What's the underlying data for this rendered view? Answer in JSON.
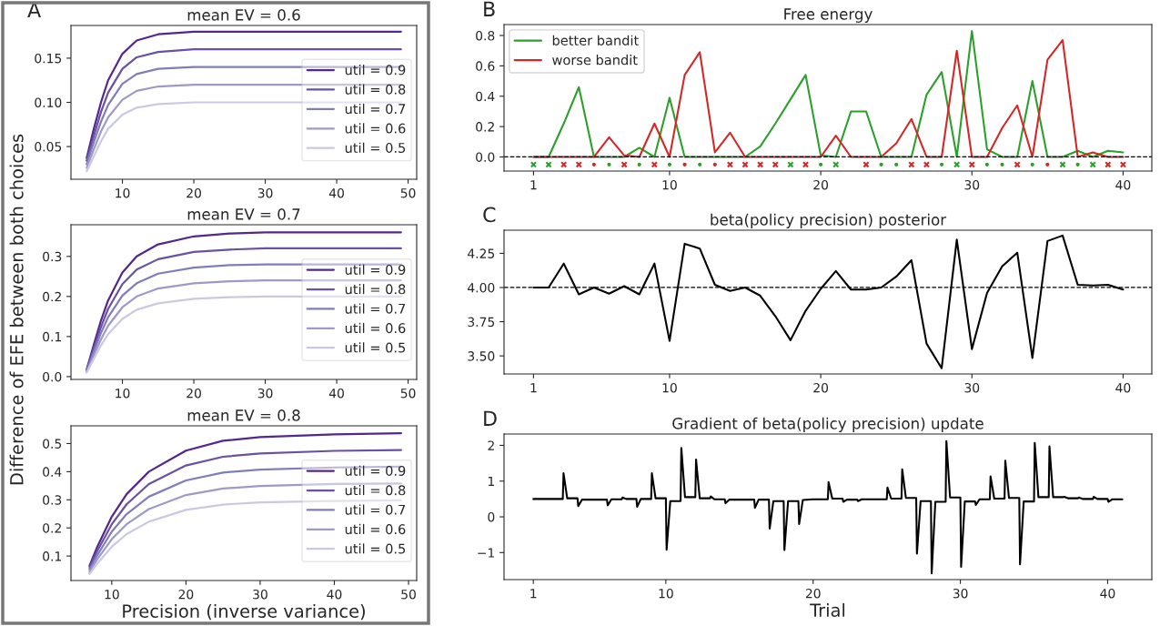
{
  "chart_data": [
    {
      "type": "line",
      "title": "mean EV = 0.6",
      "annotations": [
        "A"
      ],
      "x": [
        5,
        6,
        7,
        8,
        10,
        12,
        15,
        20,
        25,
        30,
        49
      ],
      "xlim": [
        2.8,
        51.2
      ],
      "ylim": [
        0.013,
        0.187
      ],
      "xticks": [
        10,
        20,
        30,
        40,
        50
      ],
      "yticks": [
        {
          "value": 0.05,
          "label": "0.05"
        },
        {
          "value": 0.1,
          "label": "0.10"
        },
        {
          "value": 0.15,
          "label": "0.15"
        }
      ],
      "legend": "right",
      "grid": false,
      "series": [
        {
          "name": "util = 0.9",
          "color": "#54278f",
          "values": [
            0.037,
            0.07,
            0.1,
            0.125,
            0.155,
            0.17,
            0.177,
            0.18,
            0.18,
            0.18,
            0.18
          ]
        },
        {
          "name": "util = 0.8",
          "color": "#6a51a3",
          "values": [
            0.034,
            0.062,
            0.089,
            0.111,
            0.138,
            0.151,
            0.157,
            0.16,
            0.16,
            0.16,
            0.16
          ]
        },
        {
          "name": "util = 0.7",
          "color": "#807dba",
          "values": [
            0.03,
            0.055,
            0.078,
            0.097,
            0.121,
            0.132,
            0.138,
            0.14,
            0.14,
            0.14,
            0.14
          ]
        },
        {
          "name": "util = 0.6",
          "color": "#9e9ac8",
          "values": [
            0.026,
            0.047,
            0.067,
            0.083,
            0.103,
            0.113,
            0.118,
            0.12,
            0.12,
            0.12,
            0.12
          ]
        },
        {
          "name": "util = 0.5",
          "color": "#cbc9e2",
          "values": [
            0.022,
            0.039,
            0.056,
            0.07,
            0.086,
            0.094,
            0.098,
            0.1,
            0.1,
            0.1,
            0.1
          ]
        }
      ]
    },
    {
      "type": "line",
      "title": "mean EV = 0.7",
      "ylabel": "Difference of EFE between both choices",
      "x": [
        5,
        6,
        7,
        8,
        10,
        12,
        15,
        20,
        25,
        30,
        49
      ],
      "xlim": [
        2.8,
        51.2
      ],
      "ylim": [
        -0.007,
        0.379
      ],
      "xticks": [
        10,
        20,
        30,
        40,
        50
      ],
      "yticks": [
        {
          "value": 0,
          "label": "0.0"
        },
        0.1,
        0.2,
        0.3
      ],
      "legend": "right",
      "grid": false,
      "series": [
        {
          "name": "util = 0.9",
          "color": "#54278f",
          "values": [
            0.018,
            0.08,
            0.14,
            0.19,
            0.26,
            0.3,
            0.33,
            0.35,
            0.357,
            0.36,
            0.36
          ]
        },
        {
          "name": "util = 0.8",
          "color": "#6a51a3",
          "values": [
            0.016,
            0.071,
            0.124,
            0.169,
            0.231,
            0.267,
            0.293,
            0.311,
            0.317,
            0.32,
            0.32
          ]
        },
        {
          "name": "util = 0.7",
          "color": "#807dba",
          "values": [
            0.014,
            0.062,
            0.109,
            0.148,
            0.202,
            0.233,
            0.257,
            0.272,
            0.278,
            0.28,
            0.28
          ]
        },
        {
          "name": "util = 0.6",
          "color": "#9e9ac8",
          "values": [
            0.012,
            0.053,
            0.093,
            0.127,
            0.173,
            0.2,
            0.22,
            0.233,
            0.238,
            0.24,
            0.24
          ]
        },
        {
          "name": "util = 0.5",
          "color": "#cbc9e2",
          "values": [
            0.01,
            0.044,
            0.078,
            0.106,
            0.144,
            0.167,
            0.183,
            0.194,
            0.198,
            0.2,
            0.2
          ]
        }
      ]
    },
    {
      "type": "line",
      "title": "mean EV = 0.8",
      "xlabel": "Precision (inverse variance)",
      "x": [
        7,
        8,
        10,
        12,
        15,
        20,
        25,
        30,
        40,
        49
      ],
      "xlim": [
        4.5,
        51.1
      ],
      "ylim": [
        0.013,
        0.563
      ],
      "xticks": [
        10,
        20,
        30,
        40,
        50
      ],
      "yticks": [
        0.1,
        0.2,
        0.3,
        0.4,
        0.5
      ],
      "legend": "right",
      "grid": false,
      "series": [
        {
          "name": "util = 0.9",
          "color": "#54278f",
          "values": [
            0.065,
            0.13,
            0.24,
            0.32,
            0.4,
            0.475,
            0.51,
            0.523,
            0.533,
            0.537
          ]
        },
        {
          "name": "util = 0.8",
          "color": "#6a51a3",
          "values": [
            0.058,
            0.116,
            0.213,
            0.284,
            0.356,
            0.422,
            0.453,
            0.465,
            0.474,
            0.477
          ]
        },
        {
          "name": "util = 0.7",
          "color": "#807dba",
          "values": [
            0.051,
            0.101,
            0.187,
            0.249,
            0.311,
            0.369,
            0.397,
            0.407,
            0.415,
            0.418
          ]
        },
        {
          "name": "util = 0.6",
          "color": "#9e9ac8",
          "values": [
            0.043,
            0.087,
            0.16,
            0.213,
            0.267,
            0.317,
            0.34,
            0.349,
            0.356,
            0.358
          ]
        },
        {
          "name": "util = 0.5",
          "color": "#cbc9e2",
          "values": [
            0.036,
            0.072,
            0.133,
            0.178,
            0.222,
            0.264,
            0.283,
            0.291,
            0.296,
            0.298
          ]
        }
      ]
    },
    {
      "type": "line",
      "title": "Free energy",
      "annotations": [
        "B"
      ],
      "x": [
        1,
        2,
        3,
        4,
        5,
        6,
        7,
        8,
        9,
        10,
        11,
        12,
        13,
        14,
        15,
        16,
        17,
        18,
        19,
        20,
        21,
        22,
        23,
        24,
        25,
        26,
        27,
        28,
        29,
        30,
        31,
        32,
        33,
        34,
        35,
        36,
        37,
        38,
        39,
        40
      ],
      "xlim": [
        -0.95,
        41.9
      ],
      "ylim": [
        -0.093,
        0.872
      ],
      "xticks": [
        1,
        10,
        20,
        30,
        40
      ],
      "yticks": [
        {
          "value": 0,
          "label": "0.0"
        },
        0.2,
        0.4,
        0.6,
        0.8
      ],
      "legend": "top left",
      "grid": false,
      "ref_lines": [
        {
          "axis": "y",
          "value": 0,
          "color": "#000000",
          "line_style": "dashed"
        }
      ],
      "series": [
        {
          "name": "better bandit",
          "color": "#2ca02c",
          "values": [
            0,
            0,
            0.22,
            0.46,
            0,
            0,
            0,
            0.06,
            0,
            0.39,
            0,
            0,
            0,
            0,
            0,
            0.07,
            0.22,
            0.38,
            0.54,
            0.01,
            0,
            0.3,
            0.3,
            0,
            0,
            0,
            0.41,
            0.56,
            0,
            0.83,
            0.05,
            0,
            0,
            0.5,
            0,
            0,
            0.04,
            0,
            0.04,
            0.03
          ]
        },
        {
          "name": "worse bandit",
          "color": "#d62728",
          "values": [
            0,
            0,
            0,
            0,
            0,
            0.13,
            0.01,
            0,
            0.22,
            0,
            0.54,
            0.69,
            0.03,
            0.16,
            0,
            0,
            0,
            0,
            0,
            0,
            0.14,
            0,
            0,
            0,
            0.09,
            0.25,
            0,
            0,
            0.7,
            0,
            0,
            0.19,
            0.34,
            0,
            0.64,
            0.77,
            0,
            0.03,
            0,
            0
          ]
        },
        {
          "type": "scatter",
          "marker": "cross",
          "color": "#2ca02c",
          "x": [
            1,
            2,
            18,
            21,
            29,
            36,
            38
          ],
          "values": [
            -0.05,
            -0.05,
            -0.05,
            -0.05,
            -0.05,
            -0.05,
            -0.05
          ]
        },
        {
          "type": "scatter",
          "marker": "circle",
          "color": "#2ca02c",
          "x": [
            6,
            8,
            10,
            12,
            20,
            24,
            25,
            28,
            31,
            32,
            34,
            37
          ],
          "values": [
            -0.05,
            -0.05,
            -0.05,
            -0.05,
            -0.05,
            -0.05,
            -0.05,
            -0.05,
            -0.05,
            -0.05,
            -0.05,
            -0.05
          ]
        },
        {
          "type": "scatter",
          "marker": "cross",
          "color": "#d62728",
          "x": [
            3,
            4,
            7,
            9,
            14,
            15,
            16,
            17,
            19,
            23,
            26,
            27,
            30,
            33,
            39,
            40
          ],
          "values": [
            -0.05,
            -0.05,
            -0.05,
            -0.05,
            -0.05,
            -0.05,
            -0.05,
            -0.05,
            -0.05,
            -0.05,
            -0.05,
            -0.05,
            -0.05,
            -0.05,
            -0.05,
            -0.05
          ]
        },
        {
          "type": "scatter",
          "marker": "circle",
          "color": "#d62728",
          "x": [
            5,
            11,
            13,
            35
          ],
          "values": [
            -0.05,
            -0.05,
            -0.05,
            -0.05
          ]
        }
      ]
    },
    {
      "type": "line",
      "title": "beta(policy precision) posterior",
      "annotations": [
        "C"
      ],
      "x": [
        1,
        2,
        3,
        4,
        5,
        6,
        7,
        8,
        9,
        10,
        11,
        12,
        13,
        14,
        15,
        16,
        17,
        18,
        19,
        20,
        21,
        22,
        23,
        24,
        25,
        26,
        27,
        28,
        29,
        30,
        31,
        32,
        33,
        34,
        35,
        36,
        37,
        38,
        39,
        40
      ],
      "xlim": [
        -0.95,
        41.9
      ],
      "ylim": [
        3.368,
        4.419
      ],
      "xticks": [
        1,
        10,
        20,
        30,
        40
      ],
      "yticks": [
        {
          "value": 3.5,
          "label": "3.50"
        },
        {
          "value": 3.75,
          "label": "3.75"
        },
        {
          "value": 4.0,
          "label": "4.00"
        },
        {
          "value": 4.25,
          "label": "4.25"
        }
      ],
      "grid": false,
      "ref_lines": [
        {
          "axis": "y",
          "value": 4.0,
          "color": "#000000",
          "line_style": "dashed"
        }
      ],
      "series": [
        {
          "color": "#000000",
          "values": [
            4.0,
            4.0,
            4.175,
            3.95,
            4.0,
            3.955,
            4.01,
            3.95,
            4.175,
            3.61,
            4.32,
            4.285,
            4.02,
            3.975,
            4.0,
            3.94,
            3.79,
            3.615,
            3.83,
            3.99,
            4.12,
            3.985,
            3.985,
            4.0,
            4.08,
            4.2,
            3.59,
            3.41,
            4.35,
            3.55,
            3.96,
            4.155,
            4.255,
            3.485,
            4.34,
            4.38,
            4.02,
            4.015,
            4.02,
            3.985
          ]
        }
      ]
    },
    {
      "type": "line",
      "title": "Gradient of beta(policy precision) update",
      "annotations": [
        "D"
      ],
      "xlabel": "Trial",
      "xlim": [
        -0.99,
        43.0
      ],
      "ylim": [
        -1.756,
        2.317
      ],
      "xticks": [
        1,
        10,
        20,
        30,
        40
      ],
      "yticks": [
        {
          "value": -1,
          "label": "−1"
        },
        0,
        1,
        2
      ],
      "grid": false,
      "series": [
        {
          "color": "#000000",
          "x": [
            1,
            3,
            3.05,
            3.3,
            4,
            4.05,
            4.3,
            6,
            6.05,
            6.3,
            7,
            7.05,
            7.3,
            8,
            8.05,
            8.3,
            9,
            9.05,
            9.3,
            10,
            10.05,
            10.3,
            11,
            11.05,
            11.3,
            12,
            12.05,
            12.3,
            13,
            13.05,
            13.3,
            14,
            14.05,
            14.3,
            16,
            16.05,
            16.3,
            17,
            17.05,
            17.3,
            18,
            18.05,
            18.3,
            19,
            19.05,
            19.3,
            20,
            21,
            21.05,
            21.3,
            22,
            22.05,
            22.3,
            23,
            23.05,
            23.3,
            25,
            25.05,
            25.3,
            26,
            26.05,
            26.3,
            27,
            27.05,
            27.3,
            28,
            28.05,
            28.3,
            29,
            29.05,
            29.3,
            30,
            30.05,
            30.3,
            31,
            31.05,
            31.3,
            32,
            32.05,
            32.3,
            33,
            33.05,
            33.3,
            34,
            34.05,
            34.3,
            35,
            35.05,
            35.3,
            36,
            36.05,
            36.3,
            37,
            37.05,
            37.3,
            38,
            38.05,
            38.3,
            39,
            39.05,
            39.3,
            40,
            40.05,
            40.3,
            41
          ],
          "values": [
            0.5,
            0.5,
            1.22,
            0.52,
            0.52,
            0.3,
            0.48,
            0.48,
            0.32,
            0.49,
            0.49,
            0.54,
            0.5,
            0.5,
            0.28,
            0.5,
            0.5,
            1.22,
            0.52,
            0.52,
            -0.92,
            0.44,
            0.44,
            1.93,
            0.55,
            0.55,
            1.6,
            0.52,
            0.52,
            0.57,
            0.49,
            0.49,
            0.38,
            0.48,
            0.48,
            0.25,
            0.48,
            0.48,
            -0.33,
            0.44,
            0.44,
            -0.93,
            0.44,
            0.44,
            -0.2,
            0.47,
            0.49,
            0.49,
            0.97,
            0.51,
            0.51,
            0.42,
            0.48,
            0.48,
            0.44,
            0.49,
            0.49,
            0.82,
            0.51,
            0.51,
            1.33,
            0.53,
            0.53,
            -1.03,
            0.44,
            0.44,
            -1.58,
            0.42,
            0.42,
            2.12,
            0.54,
            0.54,
            -1.4,
            0.43,
            0.43,
            0.33,
            0.49,
            0.49,
            1.13,
            0.51,
            0.51,
            1.57,
            0.53,
            0.53,
            -1.33,
            0.43,
            0.43,
            2.07,
            0.55,
            0.55,
            1.97,
            0.55,
            0.55,
            0.56,
            0.52,
            0.52,
            0.54,
            0.5,
            0.5,
            0.56,
            0.5,
            0.5,
            0.42,
            0.49,
            0.49
          ]
        }
      ]
    }
  ]
}
